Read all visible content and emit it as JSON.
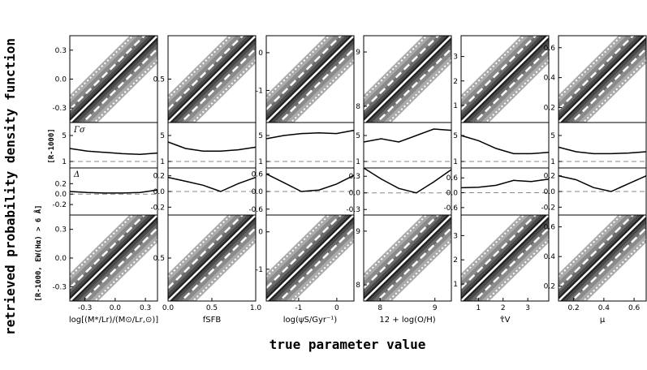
{
  "figure": {
    "y_label": "retrieved probability density function",
    "x_label": "true parameter value",
    "row_labels": [
      "[R-1000]",
      "[R-1000, EW(Hα) > 6 Å]"
    ],
    "ratio_labels": [
      "Γσ",
      "Δ"
    ]
  },
  "chart_data": [
    {
      "type": "line",
      "column": 1,
      "panel": "pdf-top",
      "xlabel": "log[(M*/Lr)/(M⊙/Lr,⊙)]",
      "xlim": [
        -0.45,
        0.42
      ],
      "xticks": [
        "-0.3",
        "0.0",
        "0.3"
      ],
      "ylim": [
        -0.45,
        0.45
      ],
      "yticks": [
        "-0.3",
        "0.0",
        "0.3"
      ]
    },
    {
      "type": "line",
      "column": 2,
      "panel": "pdf-top",
      "xlabel": "fSFB",
      "xlim": [
        0.0,
        1.0
      ],
      "xticks": [
        "0.0",
        "0.5",
        "1.0"
      ],
      "ylim": [
        0.0,
        1.0
      ],
      "yticks": [
        "0.5"
      ]
    },
    {
      "type": "line",
      "column": 3,
      "panel": "pdf-top",
      "xlabel": "log(ψS/Gyr⁻¹)",
      "xlim": [
        -1.85,
        0.45
      ],
      "xticks": [
        "-1",
        "0"
      ],
      "ylim": [
        -1.85,
        0.45
      ],
      "yticks": [
        "-1",
        "0"
      ]
    },
    {
      "type": "line",
      "column": 4,
      "panel": "pdf-top",
      "xlabel": "12 + log(O/H)",
      "xlim": [
        7.7,
        9.3
      ],
      "xticks": [
        "8",
        "9"
      ],
      "ylim": [
        7.7,
        9.3
      ],
      "yticks": [
        "8",
        "9"
      ]
    },
    {
      "type": "line",
      "column": 5,
      "panel": "pdf-top",
      "xlabel": "τ̂V",
      "xlim": [
        0.3,
        3.85
      ],
      "xticks": [
        "1",
        "2",
        "3"
      ],
      "ylim": [
        0.3,
        3.85
      ],
      "yticks": [
        "1",
        "2",
        "3"
      ]
    },
    {
      "type": "line",
      "column": 6,
      "panel": "pdf-top",
      "xlabel": "μ",
      "xlim": [
        0.1,
        0.68
      ],
      "xticks": [
        "0.2",
        "0.4",
        "0.6"
      ],
      "ylim": [
        0.1,
        0.68
      ],
      "yticks": [
        "0.2",
        "0.4",
        "0.6"
      ]
    },
    {
      "type": "line",
      "panel": "ratio-gamma",
      "ylim": [
        0,
        7
      ],
      "yticks": [
        "1",
        "5"
      ],
      "series": [
        {
          "column": 1,
          "x": [
            0.0,
            0.2,
            0.4,
            0.6,
            0.8,
            1.0
          ],
          "y": [
            3.0,
            2.6,
            2.4,
            2.2,
            2.1,
            2.3
          ]
        },
        {
          "column": 2,
          "x": [
            0.0,
            0.2,
            0.4,
            0.6,
            0.8,
            1.0
          ],
          "y": [
            4.0,
            3.0,
            2.6,
            2.6,
            2.8,
            3.2
          ]
        },
        {
          "column": 3,
          "x": [
            0.0,
            0.2,
            0.4,
            0.6,
            0.8,
            1.0
          ],
          "y": [
            4.5,
            5.0,
            5.3,
            5.4,
            5.3,
            5.8
          ]
        },
        {
          "column": 4,
          "x": [
            0.0,
            0.2,
            0.4,
            0.6,
            0.8,
            1.0
          ],
          "y": [
            4.0,
            4.5,
            4.0,
            5.0,
            6.0,
            5.8
          ]
        },
        {
          "column": 5,
          "x": [
            0.0,
            0.2,
            0.4,
            0.6,
            0.8,
            1.0
          ],
          "y": [
            5.0,
            4.2,
            3.0,
            2.2,
            2.2,
            2.4
          ]
        },
        {
          "column": 6,
          "x": [
            0.0,
            0.2,
            0.4,
            0.6,
            0.8,
            1.0
          ],
          "y": [
            3.2,
            2.5,
            2.2,
            2.2,
            2.3,
            2.5
          ]
        }
      ]
    },
    {
      "type": "line",
      "panel": "ratio-delta",
      "series": [
        {
          "column": 1,
          "x": [
            0.0,
            0.2,
            0.4,
            0.6,
            0.8,
            1.0
          ],
          "y": [
            0.05,
            0.03,
            0.02,
            0.02,
            0.03,
            0.08
          ],
          "ylim": [
            -0.4,
            0.5
          ]
        },
        {
          "column": 2,
          "x": [
            0.0,
            0.2,
            0.4,
            0.6,
            0.8,
            1.0
          ],
          "y": [
            0.18,
            0.13,
            0.08,
            0.0,
            0.1,
            0.18
          ],
          "ylim": [
            -0.3,
            0.3
          ]
        },
        {
          "column": 3,
          "x": [
            0.0,
            0.2,
            0.4,
            0.6,
            0.8,
            1.0
          ],
          "y": [
            0.6,
            0.3,
            0.0,
            0.05,
            0.25,
            0.55
          ],
          "ylim": [
            -0.8,
            0.8
          ]
        },
        {
          "column": 4,
          "x": [
            0.0,
            0.2,
            0.4,
            0.6,
            0.8,
            1.0
          ],
          "y": [
            0.45,
            0.25,
            0.08,
            0.0,
            0.2,
            0.42
          ],
          "ylim": [
            -0.4,
            0.45
          ]
        },
        {
          "column": 5,
          "x": [
            0.0,
            0.2,
            0.4,
            0.6,
            0.8,
            1.0
          ],
          "y": [
            0.2,
            0.22,
            0.3,
            0.5,
            0.45,
            0.55
          ],
          "ylim": [
            -0.9,
            1.0
          ]
        },
        {
          "column": 6,
          "x": [
            0.0,
            0.2,
            0.4,
            0.6,
            0.8,
            1.0
          ],
          "y": [
            0.2,
            0.15,
            0.05,
            0.0,
            0.1,
            0.2
          ],
          "ylim": [
            -0.3,
            0.3
          ]
        }
      ],
      "yticks_by_column": [
        [
          "-0.2",
          "0.0",
          "0.2"
        ],
        [
          "-0.2",
          "0.0",
          "0.2"
        ],
        [
          "-0.6",
          "0.0",
          "0.6"
        ],
        [
          "-0.3",
          "0.0",
          "0.3"
        ],
        [
          "-0.6",
          "0.0",
          "0.6"
        ],
        [
          "-0.2",
          "0.0",
          "0.2"
        ]
      ]
    },
    {
      "type": "line",
      "column": 1,
      "panel": "pdf-bottom",
      "ylim": [
        -0.45,
        0.45
      ],
      "yticks": [
        "-0.3",
        "0.0",
        "0.3"
      ]
    },
    {
      "type": "line",
      "column": 2,
      "panel": "pdf-bottom",
      "ylim": [
        0.0,
        1.0
      ],
      "yticks": [
        "0.5"
      ]
    },
    {
      "type": "line",
      "column": 3,
      "panel": "pdf-bottom",
      "ylim": [
        -1.85,
        0.45
      ],
      "yticks": [
        "-1",
        "0"
      ]
    },
    {
      "type": "line",
      "column": 4,
      "panel": "pdf-bottom",
      "ylim": [
        7.7,
        9.3
      ],
      "yticks": [
        "8",
        "9"
      ]
    },
    {
      "type": "line",
      "column": 5,
      "panel": "pdf-bottom",
      "ylim": [
        0.3,
        3.85
      ],
      "yticks": [
        "1",
        "2",
        "3"
      ]
    },
    {
      "type": "line",
      "column": 6,
      "panel": "pdf-bottom",
      "ylim": [
        0.1,
        0.68
      ],
      "yticks": [
        "0.2",
        "0.4",
        "0.6"
      ]
    }
  ]
}
